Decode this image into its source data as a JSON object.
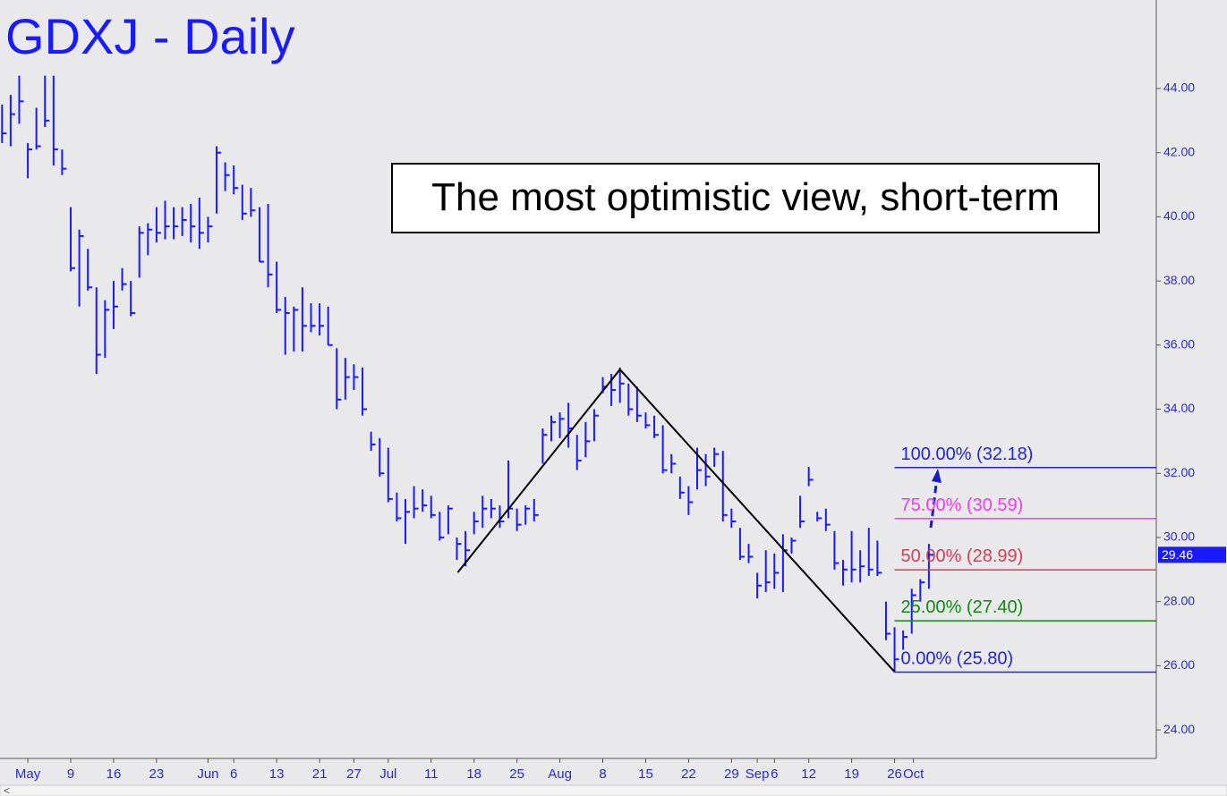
{
  "chart_data": {
    "type": "ohlc",
    "title": "GDXJ - Daily",
    "annotation": "The most optimistic view, short-term",
    "color": "#1a1aff",
    "high": [
      43.5,
      43.8,
      44.4,
      42.3,
      43.4,
      44.4,
      44.4,
      42.1,
      40.3,
      39.6,
      39.0,
      37.8,
      37.4,
      38.0,
      38.4,
      38.0,
      39.7,
      39.8,
      40.3,
      40.5,
      40.3,
      40.3,
      40.4,
      40.6,
      40.0,
      42.2,
      41.7,
      41.6,
      41.0,
      40.9,
      40.3,
      40.4,
      38.6,
      37.5,
      37.2,
      37.8,
      37.3,
      37.3,
      37.2,
      35.9,
      35.6,
      35.4,
      35.3,
      33.3,
      33.1,
      32.8,
      31.4,
      31.2,
      31.6,
      31.5,
      31.3,
      30.8,
      31.0,
      30.0,
      30.2,
      30.8,
      31.3,
      31.2,
      31.0,
      32.4,
      30.9,
      31.0,
      31.2,
      33.4,
      33.8,
      33.9,
      34.2,
      33.2,
      33.6,
      34.0,
      35.0,
      35.1,
      35.3,
      34.8,
      34.7,
      33.9,
      33.8,
      33.5,
      32.6,
      31.9,
      31.6,
      32.8,
      32.6,
      32.8,
      32.7,
      30.9,
      30.3,
      29.8,
      28.9,
      29.6,
      29.5,
      30.1,
      30.0,
      31.3,
      32.2,
      30.8,
      30.9,
      30.2,
      29.3,
      30.2,
      29.6,
      30.3,
      29.9,
      28.0,
      27.2,
      27.1,
      28.4,
      28.7,
      29.8
    ],
    "low": [
      42.3,
      42.2,
      42.9,
      41.2,
      42.1,
      42.8,
      41.6,
      41.3,
      38.3,
      37.2,
      37.7,
      35.1,
      35.6,
      36.5,
      37.7,
      36.9,
      38.1,
      38.8,
      39.2,
      39.3,
      39.3,
      39.4,
      39.2,
      39.0,
      39.2,
      40.1,
      40.8,
      40.7,
      39.9,
      40.0,
      38.6,
      37.8,
      37.0,
      35.7,
      35.8,
      35.8,
      36.4,
      36.3,
      36.0,
      34.0,
      34.3,
      34.6,
      33.8,
      32.7,
      31.9,
      31.1,
      30.5,
      29.8,
      30.6,
      30.8,
      30.6,
      29.9,
      30.1,
      29.3,
      29.1,
      30.1,
      30.3,
      30.6,
      30.3,
      30.6,
      30.2,
      30.4,
      30.5,
      32.3,
      33.0,
      33.1,
      32.8,
      32.1,
      32.5,
      33.0,
      34.5,
      34.1,
      34.2,
      33.8,
      33.6,
      33.4,
      33.1,
      32.0,
      32.0,
      31.2,
      30.7,
      31.5,
      31.6,
      32.2,
      30.5,
      30.3,
      29.3,
      29.2,
      28.1,
      28.3,
      28.4,
      28.3,
      29.5,
      30.3,
      31.6,
      30.5,
      30.2,
      29.0,
      28.5,
      28.6,
      28.6,
      28.8,
      28.8,
      26.8,
      25.8,
      26.5,
      27.0,
      28.0,
      28.4
    ],
    "close": [
      42.6,
      43.2,
      43.6,
      42.1,
      42.2,
      43.0,
      42.1,
      41.5,
      38.4,
      39.4,
      37.8,
      35.7,
      37.1,
      37.2,
      37.9,
      37.0,
      39.5,
      39.6,
      39.5,
      39.7,
      39.7,
      39.9,
      39.7,
      39.5,
      39.7,
      42.0,
      41.3,
      40.9,
      40.1,
      40.2,
      38.6,
      38.2,
      37.1,
      37.0,
      37.1,
      36.6,
      36.6,
      36.6,
      36.0,
      34.3,
      35.0,
      35.0,
      34.0,
      32.9,
      32.0,
      31.2,
      30.6,
      30.8,
      30.9,
      31.0,
      30.7,
      30.0,
      30.9,
      29.8,
      29.6,
      30.5,
      30.9,
      30.9,
      30.5,
      30.9,
      30.4,
      30.9,
      30.7,
      33.2,
      33.6,
      33.7,
      33.4,
      32.4,
      33.0,
      33.8,
      34.7,
      34.6,
      34.8,
      34.0,
      33.8,
      33.5,
      33.2,
      32.1,
      32.3,
      31.4,
      31.1,
      32.1,
      31.9,
      32.6,
      30.7,
      30.5,
      29.4,
      29.4,
      28.5,
      28.6,
      28.9,
      29.6,
      29.9,
      30.5,
      31.8,
      30.6,
      30.4,
      29.2,
      29.0,
      29.0,
      29.1,
      29.0,
      28.9,
      27.0,
      26.2,
      26.9,
      28.2,
      28.6,
      29.46
    ],
    "last_price": 29.46,
    "xlim": [
      -0.24,
      134.5
    ],
    "xticks": [
      {
        "value": 3,
        "label": "May"
      },
      {
        "value": 8,
        "label": "9"
      },
      {
        "value": 13,
        "label": "16"
      },
      {
        "value": 18,
        "label": "23"
      },
      {
        "value": 24,
        "label": "Jun"
      },
      {
        "value": 27,
        "label": "6"
      },
      {
        "value": 32,
        "label": "13"
      },
      {
        "value": 37,
        "label": "21"
      },
      {
        "value": 41,
        "label": "27"
      },
      {
        "value": 45,
        "label": "Jul"
      },
      {
        "value": 50,
        "label": "11"
      },
      {
        "value": 55,
        "label": "18"
      },
      {
        "value": 60,
        "label": "25"
      },
      {
        "value": 65,
        "label": "Aug"
      },
      {
        "value": 70,
        "label": "8"
      },
      {
        "value": 75,
        "label": "15"
      },
      {
        "value": 80,
        "label": "22"
      },
      {
        "value": 85,
        "label": "29"
      },
      {
        "value": 88,
        "label": "Sep"
      },
      {
        "value": 90,
        "label": "6"
      },
      {
        "value": 94,
        "label": "12"
      },
      {
        "value": 99,
        "label": "19"
      },
      {
        "value": 104,
        "label": "26"
      },
      {
        "value": 106.2,
        "label": "Oct"
      }
    ],
    "ylim": [
      23.11,
      46.76
    ],
    "yticks": [
      {
        "value": 24,
        "label": "24.00"
      },
      {
        "value": 26,
        "label": "26.00"
      },
      {
        "value": 28,
        "label": "28.00"
      },
      {
        "value": 30,
        "label": "30.00"
      },
      {
        "value": 32,
        "label": "32.00"
      },
      {
        "value": 34,
        "label": "34.00"
      },
      {
        "value": 36,
        "label": "36.00"
      },
      {
        "value": 38,
        "label": "38.00"
      },
      {
        "value": 40,
        "label": "40.00"
      },
      {
        "value": 42,
        "label": "42.00"
      },
      {
        "value": 44,
        "label": "44.00"
      }
    ],
    "zigzag": {
      "x": [
        53.1,
        72,
        104
      ],
      "y": [
        28.91,
        35.24,
        25.81
      ]
    },
    "levels": [
      {
        "value": 32.18,
        "label": "100.00% (32.18)",
        "color": "#2323e0"
      },
      {
        "value": 30.59,
        "label": "75.00% (30.59)",
        "color": "#f03cf0"
      },
      {
        "value": 28.99,
        "label": "50.00% (28.99)",
        "color": "#d0405a"
      },
      {
        "value": 27.4,
        "label": "25.00% (27.40)",
        "color": "#128a12"
      },
      {
        "value": 25.8,
        "label": "0.00% (25.80)",
        "color": "#2323e0"
      }
    ]
  }
}
